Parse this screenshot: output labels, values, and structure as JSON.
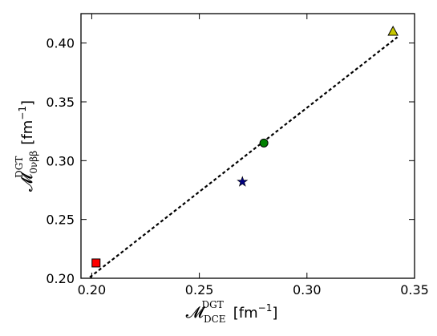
{
  "chart_data": {
    "type": "scatter",
    "title": "",
    "xlabel": {
      "symbol": "𝓜",
      "sup": "DGT",
      "sub": "DCE",
      "unit": "[fm",
      "unit_exp": "−1",
      "unit_close": "]"
    },
    "ylabel": {
      "symbol": "𝓜",
      "sup": "DGT",
      "sub": "0νββ",
      "unit": "[fm",
      "unit_exp": "−1",
      "unit_close": "]"
    },
    "xlim": [
      0.195,
      0.35
    ],
    "ylim": [
      0.2,
      0.425
    ],
    "xticks": [
      0.2,
      0.25,
      0.3,
      0.35
    ],
    "xtick_labels": [
      "0.20",
      "0.25",
      "0.30",
      "0.35"
    ],
    "yticks": [
      0.2,
      0.25,
      0.3,
      0.35,
      0.4
    ],
    "ytick_labels": [
      "0.20",
      "0.25",
      "0.30",
      "0.35",
      "0.40"
    ],
    "grid": false,
    "points": [
      {
        "x": 0.202,
        "y": 0.213,
        "marker": "square",
        "color": "#ff0000"
      },
      {
        "x": 0.27,
        "y": 0.282,
        "marker": "star",
        "color": "#000080"
      },
      {
        "x": 0.28,
        "y": 0.315,
        "marker": "circle",
        "color": "#008000"
      },
      {
        "x": 0.34,
        "y": 0.41,
        "marker": "triangle",
        "color": "#c8c800"
      }
    ],
    "fit_line": {
      "x": [
        0.195,
        0.342
      ],
      "y": [
        0.195,
        0.405
      ],
      "style": "dashed",
      "color": "#000000"
    }
  }
}
